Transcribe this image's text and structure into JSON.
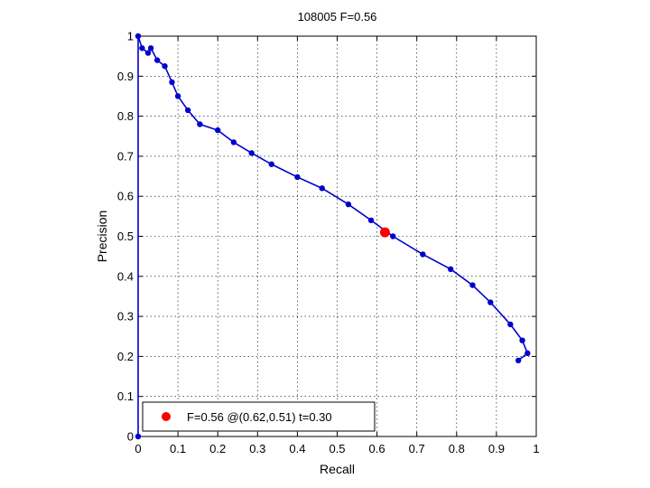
{
  "chart_data": {
    "type": "line",
    "title": "108005 F=0.56",
    "xlabel": "Recall",
    "ylabel": "Precision",
    "xlim": [
      0,
      1
    ],
    "ylim": [
      0,
      1
    ],
    "grid": true,
    "xticks": [
      {
        "value": 0,
        "label": "0"
      },
      {
        "value": 0.1,
        "label": "0.1"
      },
      {
        "value": 0.2,
        "label": "0.2"
      },
      {
        "value": 0.3,
        "label": "0.3"
      },
      {
        "value": 0.4,
        "label": "0.4"
      },
      {
        "value": 0.5,
        "label": "0.5"
      },
      {
        "value": 0.6,
        "label": "0.6"
      },
      {
        "value": 0.7,
        "label": "0.7"
      },
      {
        "value": 0.8,
        "label": "0.8"
      },
      {
        "value": 0.9,
        "label": "0.9"
      },
      {
        "value": 1,
        "label": "1"
      }
    ],
    "yticks": [
      {
        "value": 0,
        "label": "0"
      },
      {
        "value": 0.1,
        "label": "0.1"
      },
      {
        "value": 0.2,
        "label": "0.2"
      },
      {
        "value": 0.3,
        "label": "0.3"
      },
      {
        "value": 0.4,
        "label": "0.4"
      },
      {
        "value": 0.5,
        "label": "0.5"
      },
      {
        "value": 0.6,
        "label": "0.6"
      },
      {
        "value": 0.7,
        "label": "0.7"
      },
      {
        "value": 0.8,
        "label": "0.8"
      },
      {
        "value": 0.9,
        "label": "0.9"
      },
      {
        "value": 1,
        "label": "1"
      }
    ],
    "series": [
      {
        "color": "#0000cc",
        "points": [
          {
            "x": 0.0,
            "y": 0.0
          },
          {
            "x": 0.0,
            "y": 1.0
          },
          {
            "x": 0.01,
            "y": 0.97
          },
          {
            "x": 0.025,
            "y": 0.958
          },
          {
            "x": 0.032,
            "y": 0.97
          },
          {
            "x": 0.048,
            "y": 0.94
          },
          {
            "x": 0.067,
            "y": 0.925
          },
          {
            "x": 0.085,
            "y": 0.885
          },
          {
            "x": 0.1,
            "y": 0.85
          },
          {
            "x": 0.125,
            "y": 0.815
          },
          {
            "x": 0.155,
            "y": 0.78
          },
          {
            "x": 0.2,
            "y": 0.765
          },
          {
            "x": 0.24,
            "y": 0.735
          },
          {
            "x": 0.285,
            "y": 0.708
          },
          {
            "x": 0.335,
            "y": 0.68
          },
          {
            "x": 0.4,
            "y": 0.648
          },
          {
            "x": 0.462,
            "y": 0.62
          },
          {
            "x": 0.528,
            "y": 0.58
          },
          {
            "x": 0.585,
            "y": 0.54
          },
          {
            "x": 0.64,
            "y": 0.5
          },
          {
            "x": 0.715,
            "y": 0.455
          },
          {
            "x": 0.785,
            "y": 0.418
          },
          {
            "x": 0.84,
            "y": 0.378
          },
          {
            "x": 0.885,
            "y": 0.335
          },
          {
            "x": 0.935,
            "y": 0.28
          },
          {
            "x": 0.965,
            "y": 0.24
          },
          {
            "x": 0.978,
            "y": 0.208
          },
          {
            "x": 0.955,
            "y": 0.19
          }
        ]
      }
    ],
    "best_point": {
      "x": 0.62,
      "y": 0.51,
      "color": "#ff0000"
    },
    "legend": {
      "placement": "bottom-left",
      "entries": [
        {
          "label": "F=0.56 @(0.62,0.51) t=0.30",
          "color": "#ff0000"
        }
      ]
    }
  }
}
